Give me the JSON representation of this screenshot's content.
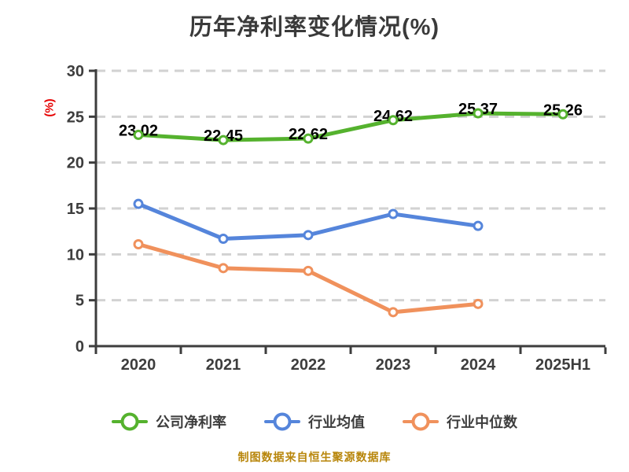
{
  "title": "历年净利率变化情况(%)",
  "footer": "制图数据来自恒生聚源数据库",
  "chart_data": {
    "type": "line",
    "title": "历年净利率变化情况(%)",
    "ylabel": "(%)",
    "categories": [
      "2020",
      "2021",
      "2022",
      "2023",
      "2024",
      "2025H1"
    ],
    "series": [
      {
        "name": "公司净利率",
        "color": "#55b22e",
        "values": [
          23.02,
          22.45,
          22.62,
          24.62,
          25.37,
          25.26
        ],
        "point_labels": [
          "23.02",
          "22.45",
          "22.62",
          "24.62",
          "25.37",
          "25.26"
        ]
      },
      {
        "name": "行业均值",
        "color": "#5585db",
        "values": [
          15.5,
          11.7,
          12.1,
          14.4,
          13.1,
          null
        ]
      },
      {
        "name": "行业中位数",
        "color": "#f0915c",
        "values": [
          11.1,
          8.5,
          8.2,
          3.7,
          4.6,
          null
        ]
      }
    ],
    "ylim": [
      0,
      30
    ],
    "yticks": [
      0,
      5,
      10,
      15,
      20,
      25,
      30
    ],
    "grid": {
      "horizontal": true,
      "style": "dashed",
      "color": "#d2d2d2"
    },
    "legend_position": "bottom",
    "axis_color": "#3d3d3d",
    "tick_label_color": "#3d3d3d",
    "data_label_color": "#000000",
    "ylabel_color": "#e60000",
    "title_color": "#3a3a3a",
    "footer_color": "#b8860b",
    "marker_style": "white circle with colored ring"
  }
}
